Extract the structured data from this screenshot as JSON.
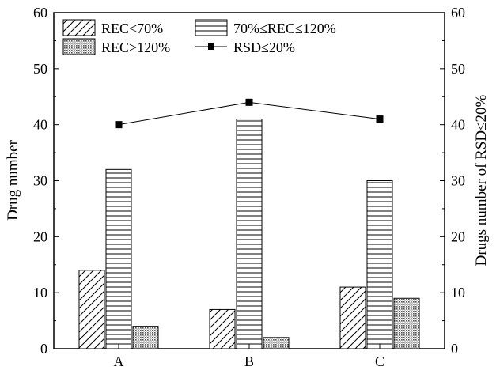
{
  "chart_data": {
    "type": "bar",
    "categories": [
      "A",
      "B",
      "C"
    ],
    "series": [
      {
        "name": "REC<70%",
        "values": [
          14,
          7,
          11
        ],
        "pattern": "diagonal"
      },
      {
        "name": "70%≤REC≤120%",
        "values": [
          32,
          41,
          30
        ],
        "pattern": "horizontal"
      },
      {
        "name": "REC>120%",
        "values": [
          4,
          2,
          9
        ],
        "pattern": "dots"
      }
    ],
    "line_series": {
      "name": "RSD≤20%",
      "values": [
        40,
        44,
        41
      ],
      "axis": "right",
      "marker": "square"
    },
    "ylabel": "Drug number",
    "y2label": "Drugs number of RSD≤20%",
    "ylim": [
      0,
      60
    ],
    "y2lim": [
      0,
      60
    ],
    "yticks": [
      "0",
      "10",
      "20",
      "30",
      "40",
      "50",
      "60"
    ],
    "y2ticks": [
      "0",
      "10",
      "20",
      "30",
      "40",
      "50",
      "60"
    ],
    "grid": false,
    "legend_position": "top-left",
    "colors": {
      "bar_fill": "#ffffff",
      "stroke": "#000000",
      "dot_fill": "#999999"
    }
  }
}
